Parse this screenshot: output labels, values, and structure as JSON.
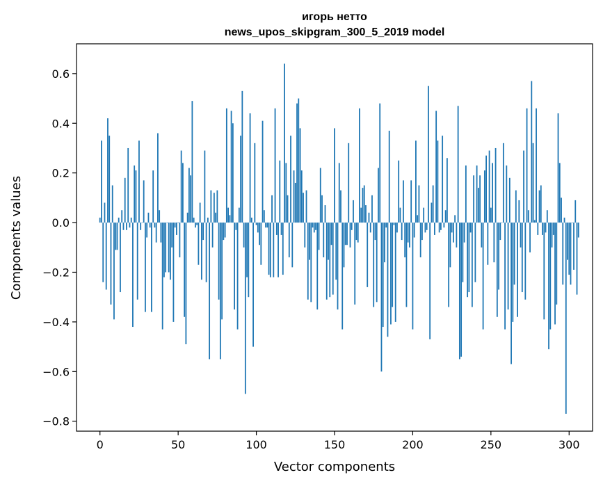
{
  "chart_data": {
    "type": "bar",
    "title_lines": [
      "игорь нетто",
      "news_upos_skipgram_300_5_2019 model"
    ],
    "xlabel": "Vector components",
    "ylabel": "Components values",
    "xlim": [
      -15,
      315
    ],
    "ylim": [
      -0.84,
      0.72
    ],
    "x_ticks": [
      0,
      50,
      100,
      150,
      200,
      250,
      300
    ],
    "x_tick_labels": [
      "0",
      "50",
      "100",
      "150",
      "200",
      "250",
      "300"
    ],
    "y_ticks": [
      0.6,
      0.4,
      0.2,
      0.0,
      -0.2,
      -0.4,
      -0.6,
      -0.8
    ],
    "y_tick_labels": [
      "0.6",
      "0.4",
      "0.2",
      "0.0",
      "−0.2",
      "−0.4",
      "−0.6",
      "−0.8"
    ],
    "bar_color": "#1f77b4",
    "grid": false,
    "values": [
      0.02,
      0.33,
      -0.24,
      0.08,
      -0.27,
      0.42,
      0.35,
      -0.33,
      0.15,
      -0.39,
      -0.11,
      -0.11,
      0.02,
      -0.28,
      0.05,
      -0.03,
      0.18,
      -0.03,
      0.3,
      -0.02,
      0.02,
      -0.42,
      0.23,
      0.21,
      -0.31,
      0.33,
      -0.03,
      0.0,
      0.17,
      -0.36,
      -0.06,
      0.04,
      -0.02,
      -0.36,
      0.21,
      -0.02,
      -0.08,
      0.36,
      0.05,
      -0.08,
      -0.43,
      -0.22,
      -0.2,
      0.0,
      -0.2,
      -0.23,
      -0.1,
      -0.4,
      -0.02,
      -0.05,
      0.0,
      -0.14,
      0.29,
      0.24,
      -0.38,
      -0.49,
      0.04,
      0.22,
      0.19,
      0.49,
      0.02,
      -0.02,
      -0.01,
      -0.17,
      0.08,
      -0.23,
      -0.07,
      0.29,
      -0.24,
      0.02,
      -0.55,
      0.13,
      -0.1,
      0.12,
      0.04,
      0.13,
      -0.31,
      -0.55,
      -0.39,
      -0.07,
      -0.06,
      0.46,
      0.06,
      0.03,
      0.45,
      0.4,
      -0.35,
      -0.03,
      -0.43,
      0.06,
      0.35,
      0.53,
      -0.1,
      -0.69,
      -0.22,
      -0.3,
      0.44,
      0.02,
      -0.5,
      0.32,
      -0.01,
      -0.04,
      -0.09,
      -0.17,
      0.41,
      0.05,
      -0.02,
      -0.02,
      -0.21,
      -0.22,
      0.11,
      -0.22,
      0.46,
      -0.05,
      -0.22,
      0.25,
      -0.05,
      -0.21,
      0.64,
      0.24,
      0.11,
      -0.14,
      0.35,
      -0.18,
      0.21,
      0.16,
      0.48,
      0.5,
      0.38,
      0.21,
      0.12,
      -0.1,
      0.13,
      -0.31,
      -0.15,
      -0.32,
      -0.02,
      -0.04,
      -0.03,
      -0.35,
      -0.11,
      0.22,
      0.11,
      -0.14,
      0.07,
      -0.31,
      -0.15,
      -0.3,
      -0.09,
      -0.29,
      0.38,
      -0.23,
      -0.35,
      0.24,
      0.13,
      -0.43,
      -0.18,
      -0.09,
      -0.09,
      0.32,
      -0.1,
      -0.03,
      0.09,
      -0.33,
      -0.07,
      -0.08,
      0.46,
      0.06,
      0.14,
      0.15,
      0.07,
      -0.26,
      0.04,
      -0.04,
      0.11,
      -0.34,
      -0.07,
      -0.32,
      0.22,
      0.48,
      -0.6,
      -0.42,
      -0.16,
      -0.02,
      -0.46,
      0.37,
      -0.41,
      -0.34,
      -0.01,
      -0.4,
      -0.04,
      0.25,
      0.06,
      -0.07,
      0.17,
      -0.14,
      -0.34,
      -0.08,
      -0.1,
      0.17,
      -0.43,
      -0.06,
      0.33,
      0.03,
      0.15,
      -0.14,
      -0.07,
      0.06,
      -0.04,
      -0.03,
      0.55,
      -0.47,
      0.08,
      0.15,
      -0.05,
      0.45,
      0.33,
      -0.04,
      -0.03,
      0.35,
      -0.02,
      0.05,
      0.26,
      -0.34,
      -0.18,
      -0.04,
      -0.08,
      0.03,
      -0.1,
      0.47,
      -0.55,
      -0.54,
      -0.24,
      -0.08,
      0.23,
      -0.3,
      -0.28,
      -0.04,
      -0.34,
      0.19,
      -0.24,
      0.23,
      0.14,
      0.19,
      -0.1,
      -0.43,
      0.21,
      0.27,
      -0.17,
      0.29,
      0.06,
      0.24,
      -0.16,
      0.3,
      -0.38,
      -0.27,
      -0.07,
      0.0,
      0.32,
      -0.43,
      0.23,
      -0.35,
      0.18,
      -0.57,
      -0.4,
      -0.25,
      0.13,
      -0.38,
      0.09,
      -0.1,
      -0.28,
      0.29,
      -0.31,
      0.46,
      0.05,
      -0.12,
      0.57,
      0.32,
      0.01,
      0.46,
      -0.05,
      0.13,
      0.15,
      -0.05,
      -0.39,
      -0.04,
      0.05,
      -0.51,
      -0.43,
      -0.1,
      -0.05,
      -0.41,
      -0.33,
      0.44,
      0.24,
      0.1,
      -0.25,
      0.02,
      -0.77,
      -0.15,
      -0.21,
      -0.25,
      0.0,
      -0.19,
      0.09,
      -0.29,
      -0.06
    ]
  }
}
